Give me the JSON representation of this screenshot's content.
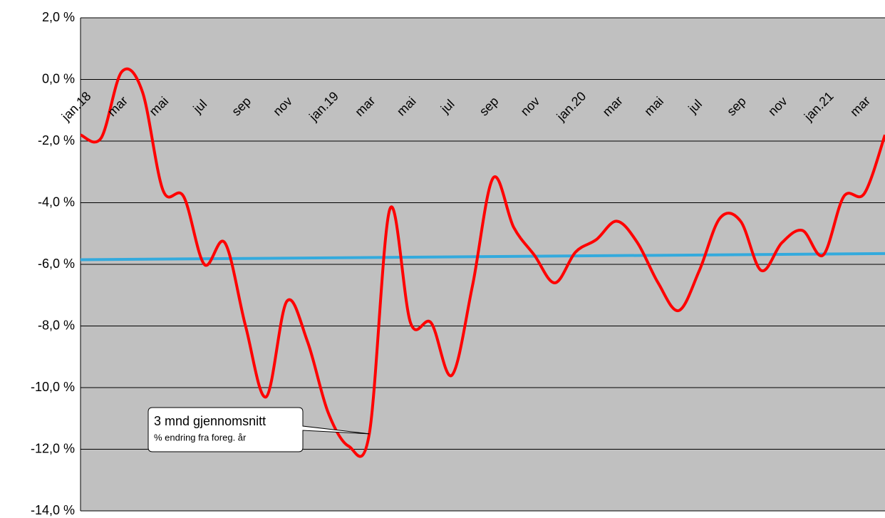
{
  "chart_data": {
    "type": "line",
    "categories": [
      "jan.18",
      null,
      "mar",
      null,
      "mai",
      null,
      "jul",
      null,
      "sep",
      null,
      "nov",
      null,
      "jan.19",
      null,
      "mar",
      null,
      "mai",
      null,
      "jul",
      null,
      "sep",
      null,
      "nov",
      null,
      "jan.20",
      null,
      "mar",
      null,
      "mai",
      null,
      "jul",
      null,
      "sep",
      null,
      "nov",
      null,
      "jan.21",
      null,
      "mar",
      null
    ],
    "series": [
      {
        "color": "#ff0000",
        "values": [
          -1.8,
          -1.9,
          0.25,
          -0.4,
          -3.6,
          -3.8,
          -6.0,
          -5.3,
          -8.0,
          -10.3,
          -7.2,
          -8.5,
          -10.8,
          -11.9,
          -11.5,
          -4.2,
          -7.9,
          -7.9,
          -9.6,
          -6.7,
          -3.2,
          -4.8,
          -5.7,
          -6.6,
          -5.6,
          -5.2,
          -4.6,
          -5.3,
          -6.6,
          -7.5,
          -6.2,
          -4.5,
          -4.6,
          -6.2,
          -5.3,
          -4.9,
          -5.7,
          -3.8,
          -3.7,
          -1.8
        ]
      }
    ],
    "trend": {
      "color": "#33aadd",
      "values": [
        -5.85,
        -5.65
      ]
    },
    "ylim": [
      -14,
      2
    ],
    "yticks": [
      {
        "value": -14,
        "label": "-14,0 %"
      },
      {
        "value": -12,
        "label": "-12,0 %"
      },
      {
        "value": -10,
        "label": "-10,0 %"
      },
      {
        "value": -8,
        "label": "-8,0 %"
      },
      {
        "value": -6,
        "label": "-6,0 %"
      },
      {
        "value": -4,
        "label": "-4,0 %"
      },
      {
        "value": -2,
        "label": "-2,0 %"
      },
      {
        "value": 0,
        "label": "0,0 %"
      },
      {
        "value": 2,
        "label": "2,0 %"
      }
    ],
    "grid": true,
    "annotation": {
      "title": "3 mnd gjennomsnitt",
      "subtitle": "% endring fra foreg. år",
      "point": 14
    }
  }
}
